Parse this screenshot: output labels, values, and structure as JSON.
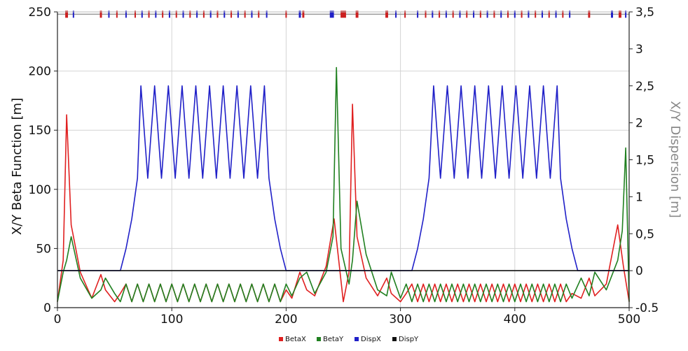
{
  "chart_data": {
    "type": "line",
    "xlabel": "",
    "ylabel_left": "X/Y Beta Function [m]",
    "ylabel_right": "X/Y Dispersion [m]",
    "xlim": [
      0,
      500
    ],
    "ylim_left": [
      0,
      250
    ],
    "ylim_right": [
      -0.5,
      3.5
    ],
    "grid": true,
    "legend_position": "bottom-center",
    "x_ticks": [
      "0",
      "100",
      "200",
      "300",
      "400",
      "500"
    ],
    "y_left_ticks": [
      "0",
      "50",
      "100",
      "150",
      "200",
      "250"
    ],
    "y_right_ticks": [
      "-0.5",
      "0",
      "0,5",
      "1",
      "1,5",
      "2",
      "2,5",
      "3",
      "3,5"
    ],
    "series": [
      {
        "name": "BetaX",
        "color": "#e02020",
        "axis": "left",
        "x": [
          0,
          5,
          8,
          12,
          20,
          30,
          38,
          42,
          50,
          55,
          60,
          65,
          70,
          75,
          80,
          85,
          90,
          95,
          100,
          105,
          110,
          115,
          120,
          125,
          130,
          135,
          140,
          145,
          150,
          155,
          160,
          165,
          170,
          175,
          180,
          185,
          190,
          195,
          200,
          205,
          212,
          218,
          225,
          235,
          242,
          246,
          250,
          255,
          258,
          262,
          270,
          280,
          288,
          292,
          300,
          305,
          310,
          315,
          320,
          325,
          330,
          335,
          340,
          345,
          350,
          355,
          360,
          365,
          370,
          375,
          380,
          385,
          390,
          395,
          400,
          405,
          410,
          415,
          420,
          425,
          430,
          435,
          440,
          445,
          450,
          458,
          465,
          470,
          480,
          490,
          495,
          500
        ],
        "values": [
          5,
          40,
          163,
          70,
          30,
          8,
          28,
          15,
          5,
          12,
          20,
          5,
          20,
          5,
          20,
          5,
          20,
          5,
          20,
          5,
          20,
          5,
          20,
          5,
          20,
          5,
          20,
          5,
          20,
          5,
          20,
          5,
          20,
          5,
          20,
          5,
          20,
          5,
          15,
          8,
          30,
          15,
          10,
          35,
          75,
          40,
          5,
          30,
          172,
          60,
          25,
          10,
          25,
          12,
          5,
          12,
          20,
          5,
          20,
          5,
          20,
          5,
          20,
          5,
          20,
          5,
          20,
          5,
          20,
          5,
          20,
          5,
          20,
          5,
          20,
          5,
          20,
          5,
          20,
          5,
          20,
          5,
          20,
          5,
          12,
          8,
          25,
          10,
          20,
          70,
          35,
          5
        ]
      },
      {
        "name": "BetaY",
        "color": "#208020",
        "axis": "left",
        "x": [
          0,
          5,
          8,
          12,
          20,
          30,
          38,
          42,
          50,
          55,
          60,
          65,
          70,
          75,
          80,
          85,
          90,
          95,
          100,
          105,
          110,
          115,
          120,
          125,
          130,
          135,
          140,
          145,
          150,
          155,
          160,
          165,
          170,
          175,
          180,
          185,
          190,
          195,
          200,
          205,
          212,
          218,
          225,
          235,
          241,
          244,
          248,
          255,
          258,
          262,
          270,
          280,
          288,
          292,
          300,
          305,
          310,
          315,
          320,
          325,
          330,
          335,
          340,
          345,
          350,
          355,
          360,
          365,
          370,
          375,
          380,
          385,
          390,
          395,
          400,
          405,
          410,
          415,
          420,
          425,
          430,
          435,
          440,
          445,
          450,
          458,
          465,
          470,
          480,
          490,
          494,
          497,
          500
        ],
        "values": [
          5,
          30,
          40,
          60,
          25,
          8,
          15,
          25,
          12,
          5,
          20,
          5,
          20,
          5,
          20,
          5,
          20,
          5,
          20,
          5,
          20,
          5,
          20,
          5,
          20,
          5,
          20,
          5,
          20,
          5,
          20,
          5,
          20,
          5,
          20,
          5,
          20,
          5,
          20,
          10,
          25,
          30,
          12,
          30,
          60,
          203,
          50,
          20,
          40,
          90,
          45,
          15,
          10,
          30,
          8,
          20,
          5,
          20,
          5,
          20,
          5,
          20,
          5,
          20,
          5,
          20,
          5,
          20,
          5,
          20,
          5,
          20,
          5,
          20,
          5,
          20,
          5,
          20,
          5,
          20,
          5,
          20,
          5,
          20,
          8,
          25,
          10,
          30,
          15,
          40,
          65,
          135,
          5
        ]
      },
      {
        "name": "DispX",
        "color": "#2020c8",
        "axis": "right",
        "x": [
          0,
          55,
          60,
          65,
          70,
          73,
          79,
          85,
          91,
          97,
          103,
          109,
          115,
          121,
          127,
          133,
          139,
          145,
          151,
          157,
          163,
          169,
          175,
          181,
          185,
          190,
          195,
          200,
          310,
          315,
          320,
          325,
          329,
          335,
          341,
          347,
          353,
          359,
          365,
          371,
          377,
          383,
          389,
          395,
          401,
          407,
          413,
          419,
          425,
          431,
          437,
          440,
          445,
          450,
          455,
          500
        ],
        "values": [
          0,
          0,
          0.3,
          0.7,
          1.25,
          2.5,
          1.25,
          2.5,
          1.25,
          2.5,
          1.25,
          2.5,
          1.25,
          2.5,
          1.25,
          2.5,
          1.25,
          2.5,
          1.25,
          2.5,
          1.25,
          2.5,
          1.25,
          2.5,
          1.25,
          0.7,
          0.3,
          0,
          0,
          0.3,
          0.7,
          1.25,
          2.5,
          1.25,
          2.5,
          1.25,
          2.5,
          1.25,
          2.5,
          1.25,
          2.5,
          1.25,
          2.5,
          1.25,
          2.5,
          1.25,
          2.5,
          1.25,
          2.5,
          1.25,
          2.5,
          1.25,
          0.7,
          0.3,
          0,
          0
        ]
      },
      {
        "name": "DispY",
        "color": "#111111",
        "axis": "right",
        "x": [
          0,
          500
        ],
        "values": [
          0,
          0
        ]
      }
    ]
  },
  "lattice": {
    "baseline_color": "#999999",
    "elements": [
      {
        "x": 8,
        "w": 4,
        "color": "#cc2020"
      },
      {
        "x": 14,
        "w": 2,
        "color": "#2020c8"
      },
      {
        "x": 38,
        "w": 3,
        "color": "#cc2020"
      },
      {
        "x": 45,
        "w": 2,
        "color": "#2020c8"
      },
      {
        "x": 52,
        "w": 2,
        "color": "#cc2020"
      },
      {
        "x": 60,
        "w": 2,
        "color": "#2020c8"
      },
      {
        "x": 68,
        "w": 2,
        "color": "#cc2020"
      },
      {
        "x": 74,
        "w": 2,
        "color": "#2020c8"
      },
      {
        "x": 80,
        "w": 2,
        "color": "#cc2020"
      },
      {
        "x": 86,
        "w": 2,
        "color": "#2020c8"
      },
      {
        "x": 92,
        "w": 2,
        "color": "#cc2020"
      },
      {
        "x": 98,
        "w": 2,
        "color": "#2020c8"
      },
      {
        "x": 104,
        "w": 2,
        "color": "#cc2020"
      },
      {
        "x": 110,
        "w": 2,
        "color": "#2020c8"
      },
      {
        "x": 116,
        "w": 2,
        "color": "#cc2020"
      },
      {
        "x": 122,
        "w": 2,
        "color": "#2020c8"
      },
      {
        "x": 128,
        "w": 2,
        "color": "#cc2020"
      },
      {
        "x": 134,
        "w": 2,
        "color": "#2020c8"
      },
      {
        "x": 140,
        "w": 2,
        "color": "#cc2020"
      },
      {
        "x": 146,
        "w": 2,
        "color": "#2020c8"
      },
      {
        "x": 152,
        "w": 2,
        "color": "#cc2020"
      },
      {
        "x": 158,
        "w": 2,
        "color": "#2020c8"
      },
      {
        "x": 164,
        "w": 2,
        "color": "#cc2020"
      },
      {
        "x": 170,
        "w": 2,
        "color": "#2020c8"
      },
      {
        "x": 176,
        "w": 2,
        "color": "#cc2020"
      },
      {
        "x": 183,
        "w": 2,
        "color": "#2020c8"
      },
      {
        "x": 200,
        "w": 2,
        "color": "#cc2020"
      },
      {
        "x": 212,
        "w": 3,
        "color": "#2020c8"
      },
      {
        "x": 215,
        "w": 3,
        "color": "#cc2020"
      },
      {
        "x": 240,
        "w": 6,
        "color": "#2020c8"
      },
      {
        "x": 250,
        "w": 8,
        "color": "#cc2020"
      },
      {
        "x": 262,
        "w": 4,
        "color": "#cc2020"
      },
      {
        "x": 288,
        "w": 4,
        "color": "#cc2020"
      },
      {
        "x": 296,
        "w": 2,
        "color": "#2020c8"
      },
      {
        "x": 304,
        "w": 2,
        "color": "#cc2020"
      },
      {
        "x": 315,
        "w": 2,
        "color": "#2020c8"
      },
      {
        "x": 322,
        "w": 2,
        "color": "#cc2020"
      },
      {
        "x": 328,
        "w": 2,
        "color": "#2020c8"
      },
      {
        "x": 334,
        "w": 2,
        "color": "#cc2020"
      },
      {
        "x": 340,
        "w": 2,
        "color": "#2020c8"
      },
      {
        "x": 346,
        "w": 2,
        "color": "#cc2020"
      },
      {
        "x": 352,
        "w": 2,
        "color": "#2020c8"
      },
      {
        "x": 358,
        "w": 2,
        "color": "#cc2020"
      },
      {
        "x": 364,
        "w": 2,
        "color": "#2020c8"
      },
      {
        "x": 370,
        "w": 2,
        "color": "#cc2020"
      },
      {
        "x": 376,
        "w": 2,
        "color": "#2020c8"
      },
      {
        "x": 382,
        "w": 2,
        "color": "#cc2020"
      },
      {
        "x": 388,
        "w": 2,
        "color": "#2020c8"
      },
      {
        "x": 394,
        "w": 2,
        "color": "#cc2020"
      },
      {
        "x": 400,
        "w": 2,
        "color": "#2020c8"
      },
      {
        "x": 406,
        "w": 2,
        "color": "#cc2020"
      },
      {
        "x": 412,
        "w": 2,
        "color": "#2020c8"
      },
      {
        "x": 418,
        "w": 2,
        "color": "#cc2020"
      },
      {
        "x": 424,
        "w": 2,
        "color": "#2020c8"
      },
      {
        "x": 430,
        "w": 2,
        "color": "#cc2020"
      },
      {
        "x": 436,
        "w": 2,
        "color": "#2020c8"
      },
      {
        "x": 442,
        "w": 2,
        "color": "#cc2020"
      },
      {
        "x": 448,
        "w": 2,
        "color": "#2020c8"
      },
      {
        "x": 465,
        "w": 3,
        "color": "#cc2020"
      },
      {
        "x": 485,
        "w": 3,
        "color": "#2020c8"
      },
      {
        "x": 492,
        "w": 4,
        "color": "#cc2020"
      },
      {
        "x": 497,
        "w": 2,
        "color": "#2020c8"
      }
    ]
  }
}
